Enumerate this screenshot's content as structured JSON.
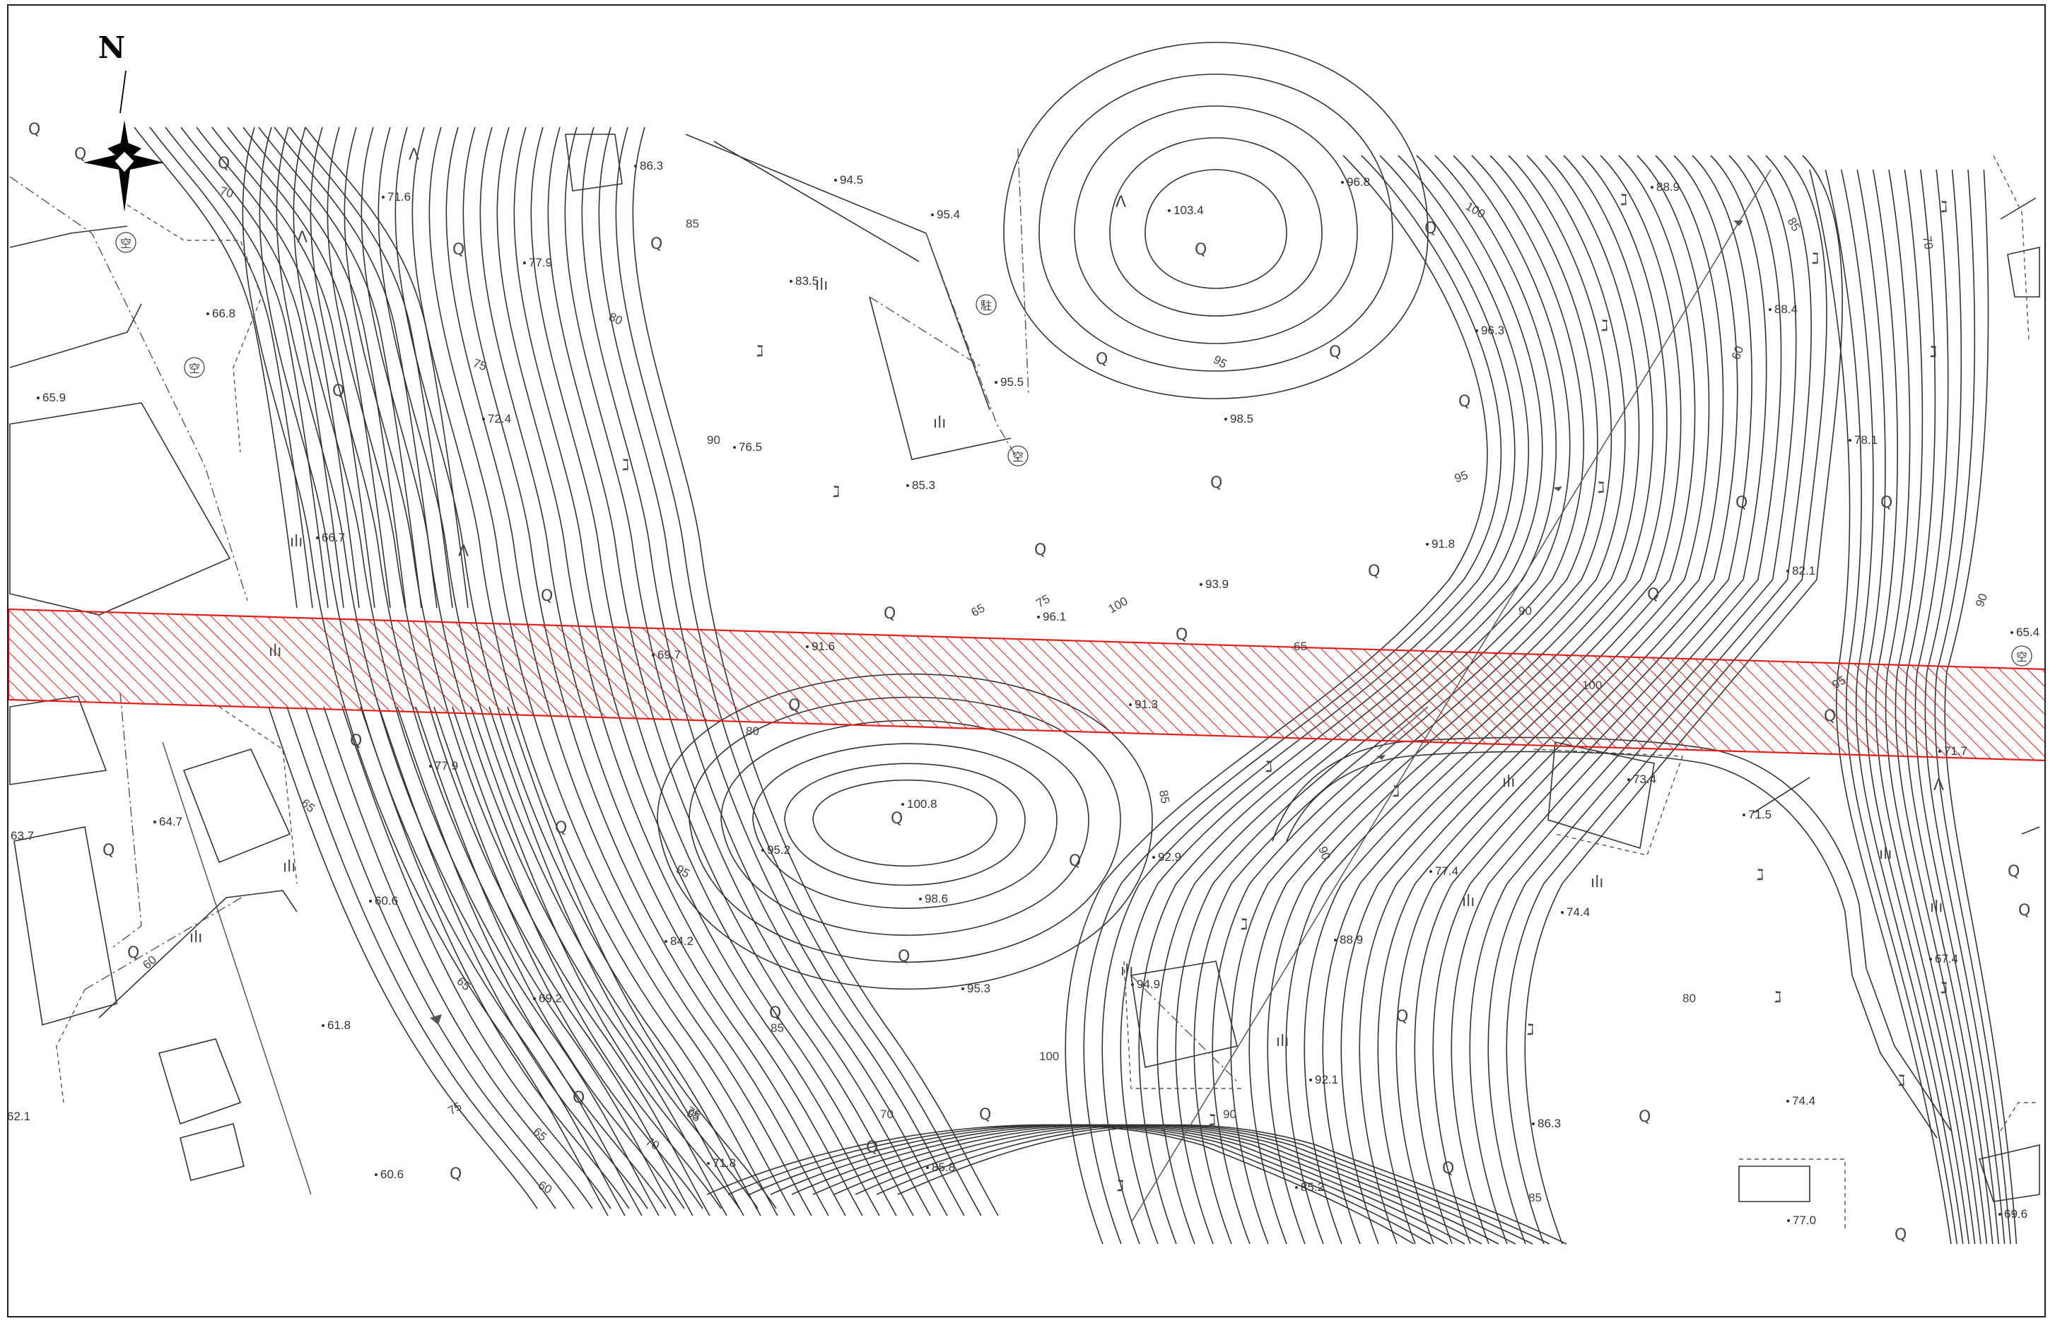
{
  "north_arrow": {
    "label": "N"
  },
  "colors": {
    "contour": "#333333",
    "survey_line": "#555555",
    "hatch_band": "#e0201c",
    "frame": "#222222"
  },
  "map_symbols": {
    "vacant_lot": "空",
    "parking": "駐"
  },
  "contour_labels": [
    "70",
    "75",
    "80",
    "85",
    "90",
    "95",
    "100",
    "65",
    "60"
  ],
  "spot_heights": [
    "71.6",
    "77.9",
    "66.8",
    "65.9",
    "72.4",
    "66.7",
    "86.3",
    "94.5",
    "95.4",
    "83.5",
    "76.5",
    "85.3",
    "95.5",
    "103.4",
    "96.8",
    "88.9",
    "96.3",
    "98.5",
    "88.4",
    "78.1",
    "91.8",
    "93.9",
    "96.1",
    "82.1",
    "65.4",
    "69.7",
    "91.6",
    "77.9",
    "91.3",
    "71.7",
    "100.8",
    "73.4",
    "64.7",
    "63.7",
    "95.2",
    "92.9",
    "77.4",
    "71.5",
    "98.6",
    "74.4",
    "60.6",
    "84.2",
    "88.9",
    "67.4",
    "69.2",
    "95.3",
    "94.9",
    "61.8",
    "92.1",
    "74.4",
    "86.3",
    "71.8",
    "85.8",
    "60.6",
    "85.2",
    "77.0",
    "69.6",
    "62.1"
  ]
}
